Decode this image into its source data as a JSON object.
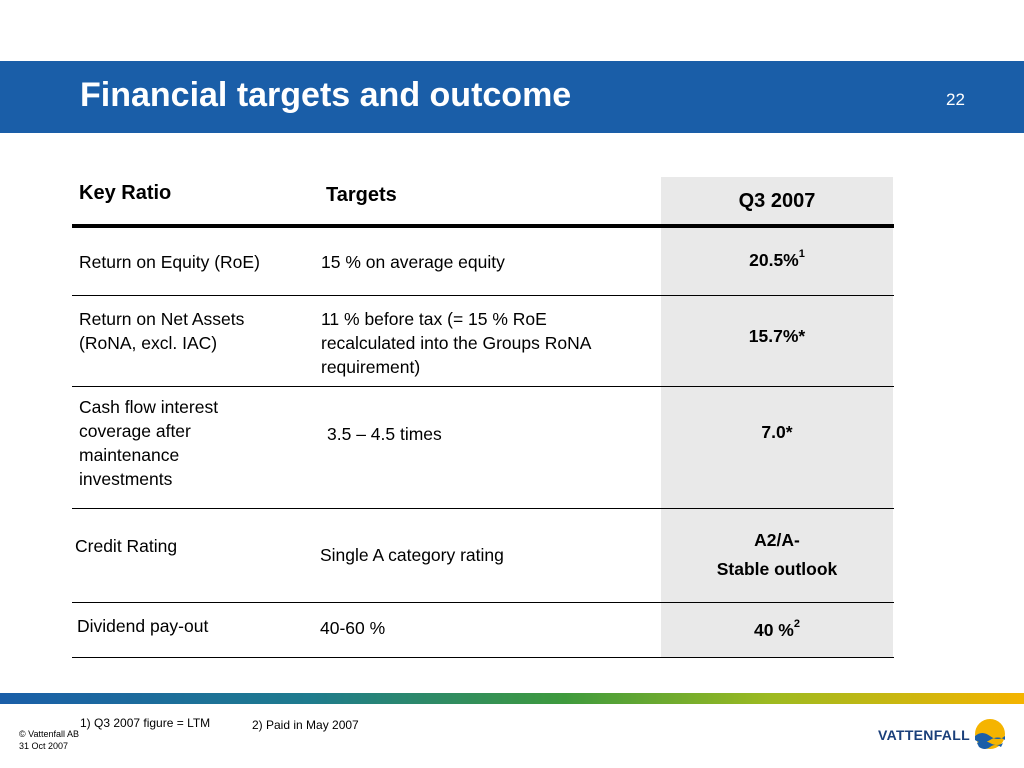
{
  "slide": {
    "title": "Financial targets and outcome",
    "page_number": "22"
  },
  "table": {
    "headers": {
      "key_ratio": "Key Ratio",
      "targets": "Targets",
      "q3": "Q3 2007"
    },
    "rows": [
      {
        "ratio": "Return on Equity (RoE)",
        "target": "15 % on average equity",
        "value": "20.5%",
        "value_sup": "1"
      },
      {
        "ratio_lines": [
          "Return on Net Assets",
          "(RoNA, excl. IAC)"
        ],
        "target_lines": [
          "11 % before tax (= 15 % RoE",
          "recalculated into the Groups RoNA",
          "requirement)"
        ],
        "value": "15.7%*"
      },
      {
        "ratio_lines": [
          "Cash flow interest",
          "coverage after",
          "maintenance",
          "investments"
        ],
        "target": "3.5 – 4.5 times",
        "value": "7.0*"
      },
      {
        "ratio": "Credit Rating",
        "target": "Single A category rating",
        "value_lines": [
          "A2/A-",
          "Stable outlook"
        ]
      },
      {
        "ratio": "Dividend pay-out",
        "target": "40-60 %",
        "value": "40 %",
        "value_sup": "2"
      }
    ]
  },
  "footnotes": {
    "note1": "1) Q3 2007 figure = LTM",
    "note2": "2) Paid in May 2007"
  },
  "footer": {
    "copyright": "© Vattenfall AB",
    "date": "31 Oct 2007",
    "logo_text": "VATTENFALL"
  },
  "colors": {
    "brand_blue": "#1a5ea8",
    "q3_column_bg": "#e9e9e9"
  }
}
